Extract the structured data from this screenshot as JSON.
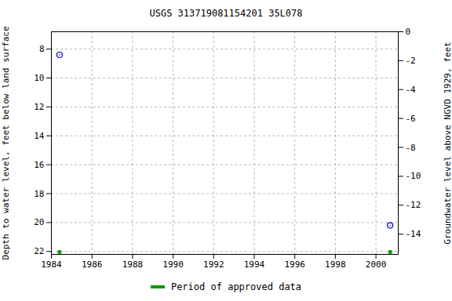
{
  "chart_data": {
    "type": "scatter",
    "title": "USGS 313719081154201 35L078",
    "x_label": null,
    "y_label": "Depth to water level, feet below land surface",
    "y2_label": "Groundwater level above NGVD 1929, feet",
    "x": [
      1984.4,
      2000.7
    ],
    "series": [
      {
        "values": [
          8.4,
          20.2
        ],
        "color": "#0000cc",
        "marker": "circle"
      }
    ],
    "approved_periods": {
      "name": "Period of approved data",
      "color": "#009900",
      "x": [
        1984.4,
        2000.7
      ]
    },
    "xlim": [
      1984,
      2001.1
    ],
    "xticks": [
      1984,
      1986,
      1988,
      1990,
      1992,
      1994,
      1996,
      1998,
      2000
    ],
    "ylim": [
      6.8,
      22.2
    ],
    "yticks": [
      8,
      10,
      12,
      14,
      16,
      18,
      20,
      22
    ],
    "y2lim": [
      0,
      -15.4
    ],
    "y2ticks": [
      0,
      -2,
      -4,
      -6,
      -8,
      -10,
      -12,
      -14
    ],
    "grid": true
  }
}
